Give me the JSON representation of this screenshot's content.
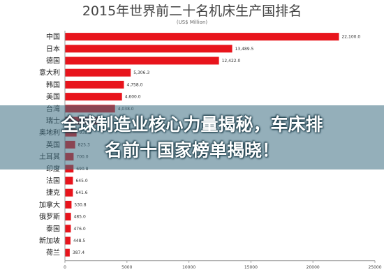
{
  "chart_data": {
    "type": "bar",
    "orientation": "horizontal",
    "title": "2015年世界前二十名机床生产国排名",
    "subtitle": "(US$ Million)",
    "categories": [
      "中国",
      "日本",
      "德国",
      "意大利",
      "韩国",
      "美国",
      "台湾",
      "瑞士",
      "奥地利",
      "英国",
      "土耳其",
      "印度",
      "法国",
      "捷克",
      "加拿大",
      "俄罗斯",
      "泰国",
      "新加坡",
      "荷兰"
    ],
    "values": [
      22100.0,
      13489.5,
      12422.0,
      5306.3,
      4758.0,
      4600.0,
      4038.0,
      3000.0,
      938.0,
      825.3,
      700.0,
      690.8,
      645.0,
      641.6,
      530.8,
      485.0,
      476.0,
      448.5,
      387.4
    ],
    "value_labels": [
      "22,100.0",
      "13,489.5",
      "12,422.0",
      "5,306.3",
      "4,758.0",
      "4,600.0",
      "4,038.0",
      "",
      "938.0",
      "825.3",
      "700.0",
      "690.8",
      "645.0",
      "641.6",
      "530.8",
      "485.0",
      "476.0",
      "448.5",
      "387.4"
    ],
    "xlim": [
      0,
      25000
    ],
    "xticks": [
      "0",
      "5000",
      "10000",
      "15000",
      "20000",
      "25000"
    ],
    "bar_color": "#e8141c",
    "grid": false,
    "legend": "none"
  },
  "overlay": {
    "line1": "全球制造业核心力量揭秘，车床排",
    "line2": "名前十国家榜单揭晓！",
    "band_color": "#3c6e82"
  }
}
